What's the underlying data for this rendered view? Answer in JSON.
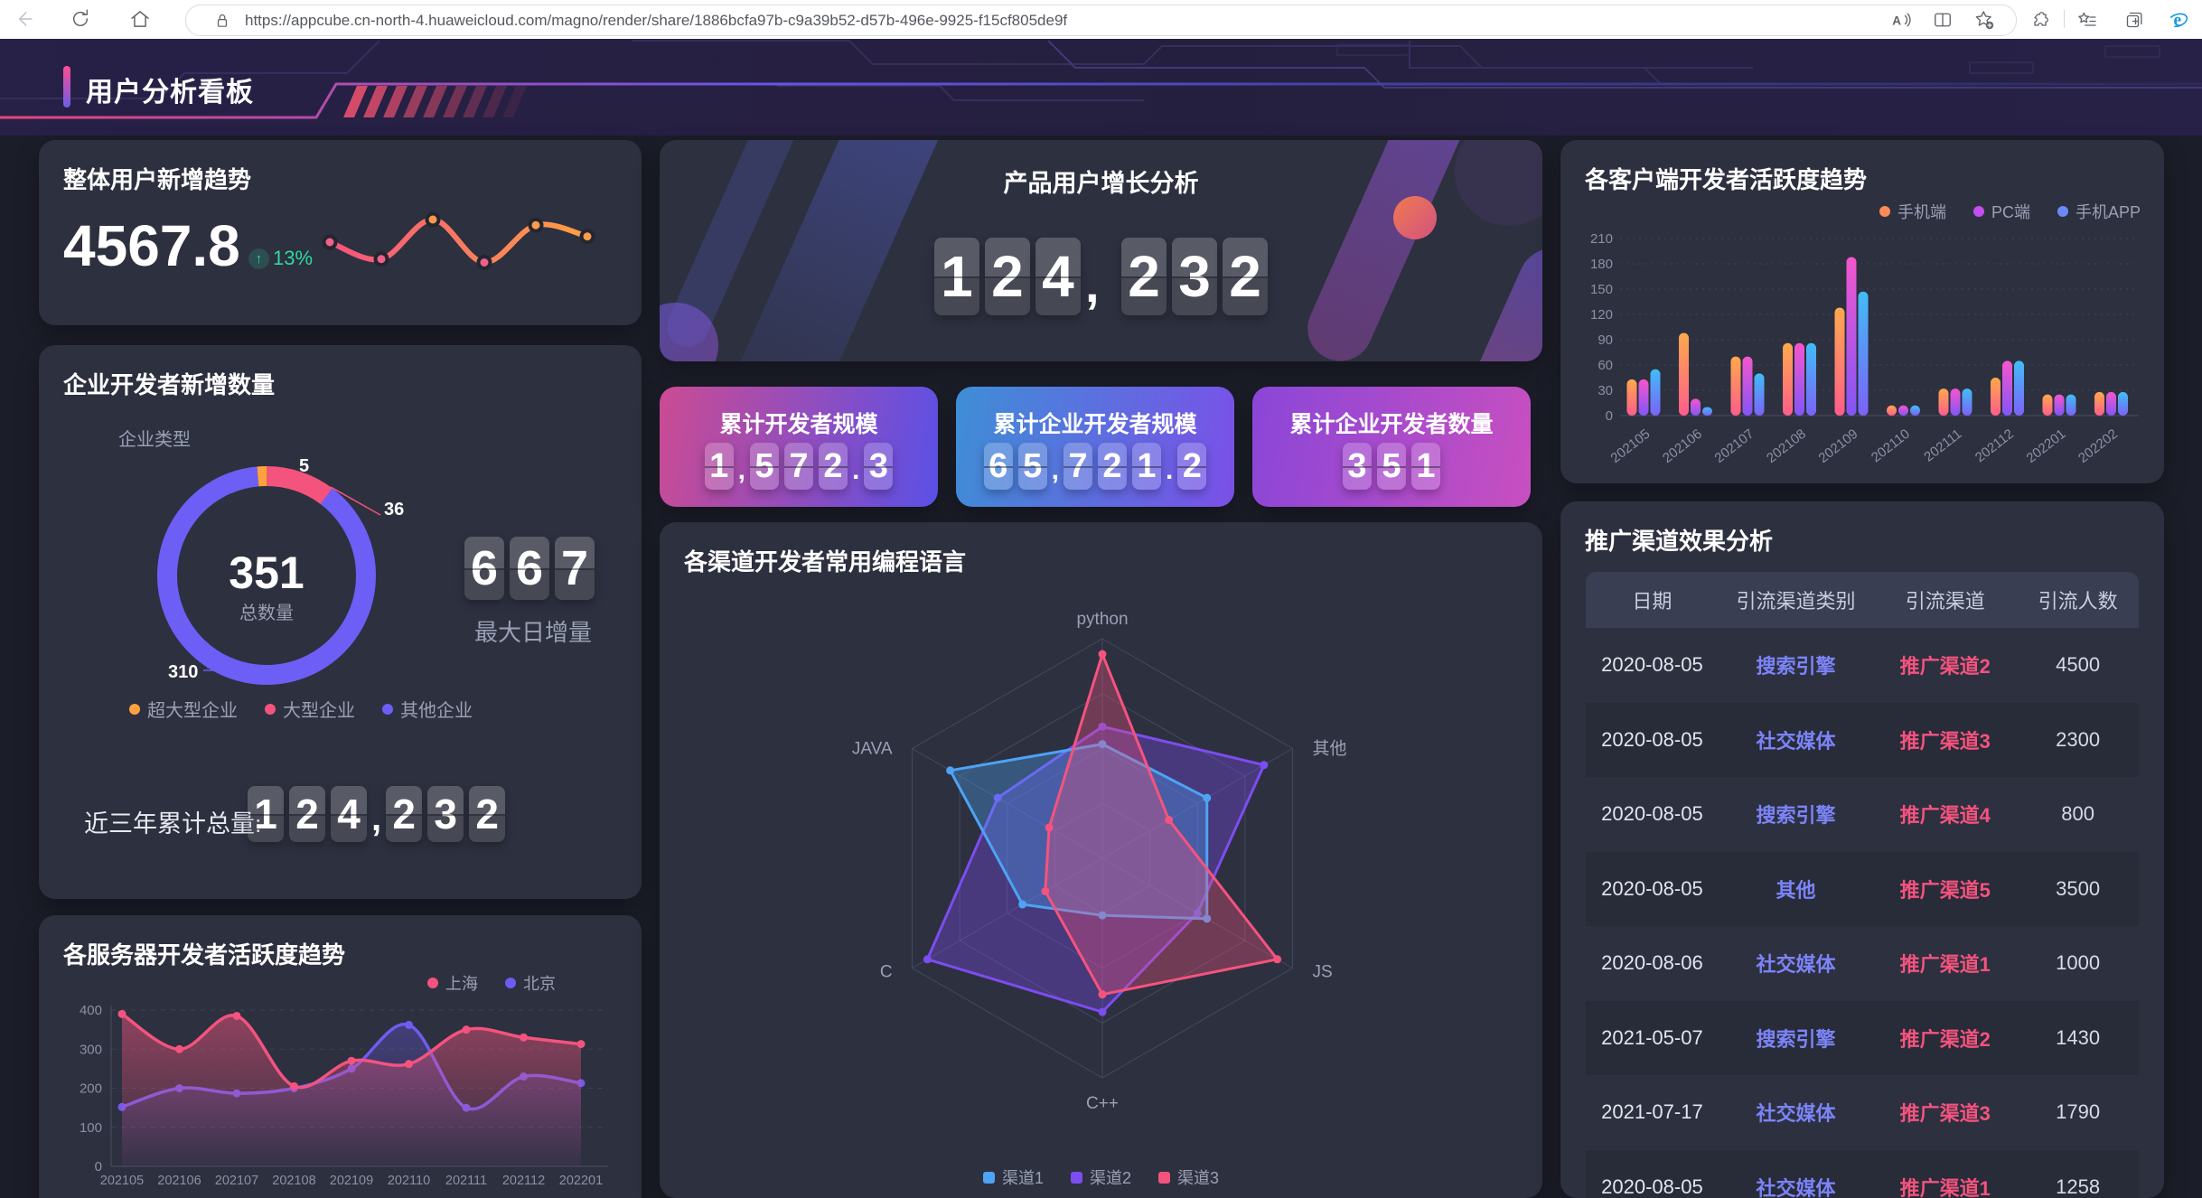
{
  "browser": {
    "url": "https://appcube.cn-north-4.huaweicloud.com/magno/render/share/1886bcfa97b-c9a39b52-d57b-496e-9925-f15cf805de9f"
  },
  "header": {
    "title": "用户分析看板"
  },
  "overall": {
    "title": "整体用户新增趋势",
    "value": "4567.8",
    "delta_arrow": "↑",
    "delta": "13%"
  },
  "enterprise": {
    "title": "企业开发者新增数量",
    "sub_label": "企业类型",
    "center_value": "351",
    "center_label": "总数量",
    "max_daily_value": "667",
    "max_daily_label": "最大日增量",
    "total_label": "近三年累计总量:",
    "total_value": "124,232"
  },
  "server": {
    "title": "各服务器开发者活跃度趋势"
  },
  "product": {
    "title": "产品用户增长分析",
    "value": "124, 232"
  },
  "stat_cards": [
    {
      "label": "累计开发者规模",
      "value": "1,572.3",
      "gradient": [
        "#cb4b93",
        "#5b50e6"
      ]
    },
    {
      "label": "累计企业开发者规模",
      "value": "65,721.2",
      "gradient": [
        "#3e8ed6",
        "#7b50e8"
      ]
    },
    {
      "label": "累计企业开发者数量",
      "value": "351",
      "gradient": [
        "#8a46d8",
        "#c84fc0"
      ]
    }
  ],
  "radar_card": {
    "title": "各渠道开发者常用编程语言"
  },
  "client_card": {
    "title": "各客户端开发者活跃度趋势"
  },
  "promo_card": {
    "title": "推广渠道效果分析"
  },
  "chart_data": [
    {
      "id": "overall_spark",
      "type": "line",
      "values": [
        60,
        45,
        80,
        42,
        75,
        65
      ],
      "line_gradient": [
        "#f4537e",
        "#ff9f43"
      ],
      "dot_colors": [
        "#f0608a",
        "#f0608a",
        "#ff9a4d",
        "#f0608a",
        "#ff9a4d",
        "#ff9a4d"
      ]
    },
    {
      "id": "enterprise_donut",
      "type": "pie",
      "total": 351,
      "slices": [
        {
          "label": "超大型企业",
          "value": 5,
          "color": "#ffa13d"
        },
        {
          "label": "大型企业",
          "value": 36,
          "color": "#f4537e"
        },
        {
          "label": "其他企业",
          "value": 310,
          "color": "#6d5ef5"
        }
      ]
    },
    {
      "id": "server_line",
      "type": "line",
      "categories": [
        "202105",
        "202106",
        "202107",
        "202108",
        "202109",
        "202110",
        "202111",
        "202112",
        "202201"
      ],
      "series": [
        {
          "name": "上海",
          "color": "#f4537e",
          "values": [
            390,
            300,
            385,
            205,
            270,
            262,
            350,
            330,
            313
          ]
        },
        {
          "name": "北京",
          "color": "#6f5bf1",
          "values": [
            152,
            200,
            187,
            200,
            250,
            362,
            150,
            230,
            213
          ]
        }
      ],
      "ylim": [
        0,
        400
      ],
      "yticks": [
        0,
        100,
        200,
        300,
        400
      ],
      "grid": true,
      "legend_position": "top-right"
    },
    {
      "id": "lang_radar",
      "type": "radar",
      "axes": [
        "python",
        "其他",
        "JS",
        "C++",
        "C",
        "JAVA"
      ],
      "max": 100,
      "series": [
        {
          "name": "渠道1",
          "color": "#4da3f5",
          "values": [
            52,
            55,
            55,
            26,
            42,
            80
          ]
        },
        {
          "name": "渠道2",
          "color": "#7c4df0",
          "values": [
            60,
            85,
            50,
            70,
            92,
            55
          ]
        },
        {
          "name": "渠道3",
          "color": "#f4537e",
          "values": [
            93,
            35,
            92,
            62,
            30,
            28
          ]
        }
      ],
      "legend_position": "bottom-center"
    },
    {
      "id": "client_bars",
      "type": "bar",
      "categories": [
        "202105",
        "202106",
        "202107",
        "202108",
        "202109",
        "202110",
        "202111",
        "202112",
        "202201",
        "202202"
      ],
      "ylim": [
        0,
        210
      ],
      "yticks": [
        0,
        30,
        60,
        90,
        120,
        150,
        180,
        210
      ],
      "grid": true,
      "legend_position": "top-right",
      "series": [
        {
          "name": "手机端",
          "color": "#fb8c5a",
          "gradient": [
            "#ffa94d",
            "#ff5d8a"
          ],
          "values": [
            43,
            98,
            70,
            86,
            128,
            12,
            32,
            45,
            25,
            28
          ]
        },
        {
          "name": "PC端",
          "color": "#c44df0",
          "gradient": [
            "#f556cd",
            "#8355f7"
          ],
          "values": [
            43,
            20,
            70,
            86,
            188,
            12,
            32,
            65,
            25,
            28
          ]
        },
        {
          "name": "手机APP",
          "color": "#6b8af7",
          "gradient": [
            "#41bdf7",
            "#7b62f7"
          ],
          "values": [
            55,
            10,
            50,
            86,
            147,
            12,
            32,
            65,
            25,
            28
          ]
        }
      ]
    },
    {
      "id": "promo_table",
      "type": "table",
      "columns": [
        "日期",
        "引流渠道类别",
        "引流渠道",
        "引流人数"
      ],
      "rows": [
        [
          "2020-08-05",
          "搜索引擎",
          "推广渠道2",
          "4500"
        ],
        [
          "2020-08-05",
          "社交媒体",
          "推广渠道3",
          "2300"
        ],
        [
          "2020-08-05",
          "搜索引擎",
          "推广渠道4",
          "800"
        ],
        [
          "2020-08-05",
          "其他",
          "推广渠道5",
          "3500"
        ],
        [
          "2020-08-06",
          "社交媒体",
          "推广渠道1",
          "1000"
        ],
        [
          "2021-05-07",
          "搜索引擎",
          "推广渠道2",
          "1430"
        ],
        [
          "2021-07-17",
          "社交媒体",
          "推广渠道3",
          "1790"
        ],
        [
          "2020-08-05",
          "社交媒体",
          "推广渠道1",
          "1258"
        ]
      ]
    }
  ]
}
